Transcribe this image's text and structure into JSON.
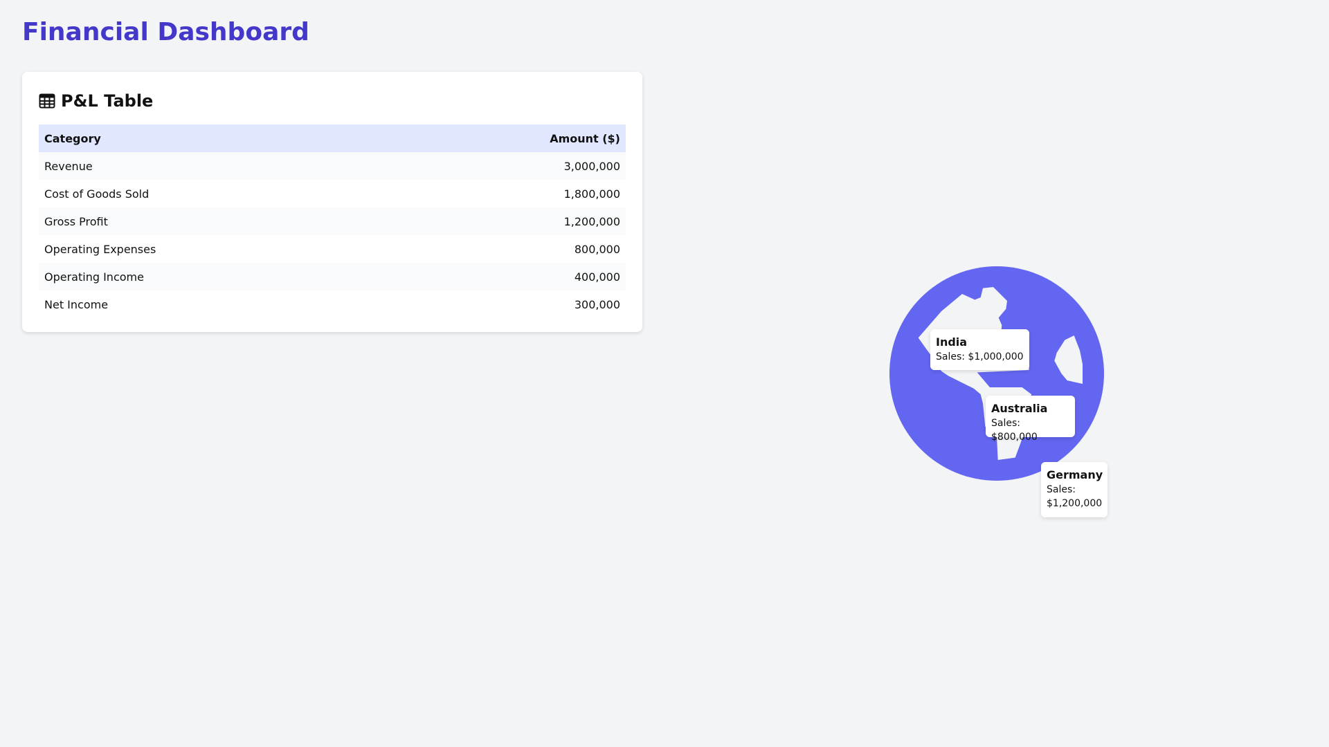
{
  "header": {
    "title": "Financial Dashboard"
  },
  "pl_table": {
    "title": "P&L Table",
    "icon": "table-icon",
    "columns": [
      "Category",
      "Amount ($)"
    ],
    "rows": [
      [
        "Revenue",
        "3,000,000"
      ],
      [
        "Cost of Goods Sold",
        "1,800,000"
      ],
      [
        "Gross Profit",
        "1,200,000"
      ],
      [
        "Operating Expenses",
        "800,000"
      ],
      [
        "Operating Income",
        "400,000"
      ],
      [
        "Net Income",
        "300,000"
      ]
    ]
  },
  "map": {
    "icon": "globe-icon",
    "color": "#6366f1",
    "markers": [
      {
        "country": "India",
        "sales": "Sales: $1,000,000"
      },
      {
        "country": "Australia",
        "sales": "Sales: $800,000"
      },
      {
        "country": "Germany",
        "sales_label": "Sales:",
        "sales_value": "$1,200,000"
      }
    ]
  }
}
